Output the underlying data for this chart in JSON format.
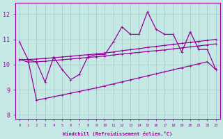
{
  "xlabel": "Windchill (Refroidissement éolien,°C)",
  "bg_color": "#c5e8e5",
  "line_color": "#990099",
  "grid_color": "#9dc9c4",
  "xlim_min": -0.5,
  "xlim_max": 23.5,
  "ylim_min": 7.85,
  "ylim_max": 12.45,
  "yticks": [
    8,
    9,
    10,
    11,
    12
  ],
  "xticks": [
    0,
    1,
    2,
    3,
    4,
    5,
    6,
    7,
    8,
    9,
    10,
    11,
    12,
    13,
    14,
    15,
    16,
    17,
    18,
    19,
    20,
    21,
    22,
    23
  ],
  "y_volatile": [
    10.9,
    10.2,
    10.1,
    9.3,
    10.3,
    9.8,
    9.4,
    9.6,
    10.3,
    10.4,
    10.4,
    10.9,
    11.5,
    11.2,
    11.2,
    12.1,
    11.4,
    11.2,
    11.2,
    10.5,
    11.3,
    10.6,
    10.6,
    9.8
  ],
  "y_upper_trend": [
    10.2,
    10.2,
    10.22,
    10.24,
    10.27,
    10.3,
    10.33,
    10.36,
    10.39,
    10.42,
    10.46,
    10.5,
    10.55,
    10.59,
    10.63,
    10.68,
    10.72,
    10.76,
    10.8,
    10.84,
    10.88,
    10.92,
    10.96,
    11.0
  ],
  "y_mid_trend": [
    10.2,
    10.1,
    10.11,
    10.13,
    10.16,
    10.19,
    10.22,
    10.25,
    10.28,
    10.31,
    10.34,
    10.38,
    10.42,
    10.45,
    10.48,
    10.52,
    10.55,
    10.58,
    10.62,
    10.66,
    10.7,
    10.74,
    10.78,
    10.82
  ],
  "y_lower_diag": [
    null,
    null,
    8.58,
    8.65,
    8.72,
    8.79,
    8.86,
    8.93,
    9.0,
    9.07,
    9.15,
    9.23,
    9.31,
    9.39,
    9.47,
    9.55,
    9.63,
    9.71,
    9.79,
    9.87,
    9.95,
    10.03,
    10.11,
    9.8
  ]
}
